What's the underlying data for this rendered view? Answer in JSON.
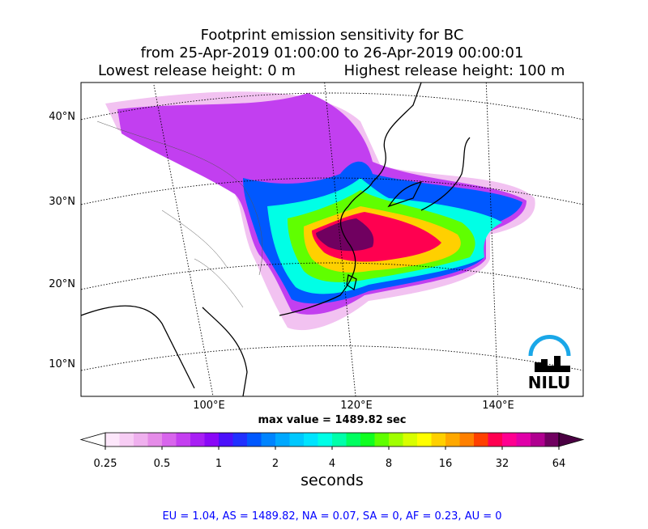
{
  "title": [
    "Footprint emission sensitivity for BC",
    "from 25-Apr-2019 01:00:00 to 26-Apr-2019 00:00:01"
  ],
  "release": {
    "lowest": "Lowest release height: 0 m",
    "highest": "Highest release height: 100 m"
  },
  "map": {
    "lat_labels": [
      "40°N",
      "30°N",
      "20°N",
      "10°N"
    ],
    "lon_labels": [
      "100°E",
      "120°E",
      "140°E"
    ],
    "logo": "NILU"
  },
  "max_value": "max value = 1489.82 sec",
  "colorbar": {
    "label": "seconds",
    "lim": [
      0.25,
      64
    ],
    "log": true,
    "ticks": [
      0.25,
      0.5,
      1,
      2,
      4,
      8,
      16,
      32,
      64
    ],
    "colors": [
      "#fde7fb",
      "#f7cdf4",
      "#efb0ee",
      "#e58ce8",
      "#d865ec",
      "#c43ff0",
      "#a81ff4",
      "#8a08f7",
      "#4c10fb",
      "#2030ff",
      "#0058ff",
      "#0084ff",
      "#00a8ff",
      "#00c8ff",
      "#00e4ff",
      "#00ffe6",
      "#00ffaa",
      "#00ff60",
      "#10ff20",
      "#60ff00",
      "#a0ff00",
      "#d8ff00",
      "#ffff00",
      "#ffd000",
      "#ffa800",
      "#ff8000",
      "#ff4000",
      "#ff0050",
      "#ff0090",
      "#e000a8",
      "#b00090",
      "#700060"
    ],
    "under": "#ffffff",
    "over": "#4a0042"
  },
  "footer": "EU = 1.04,  AS = 1489.82,  NA = 0.07,  SA = 0,  AF = 0.23,  AU = 0"
}
